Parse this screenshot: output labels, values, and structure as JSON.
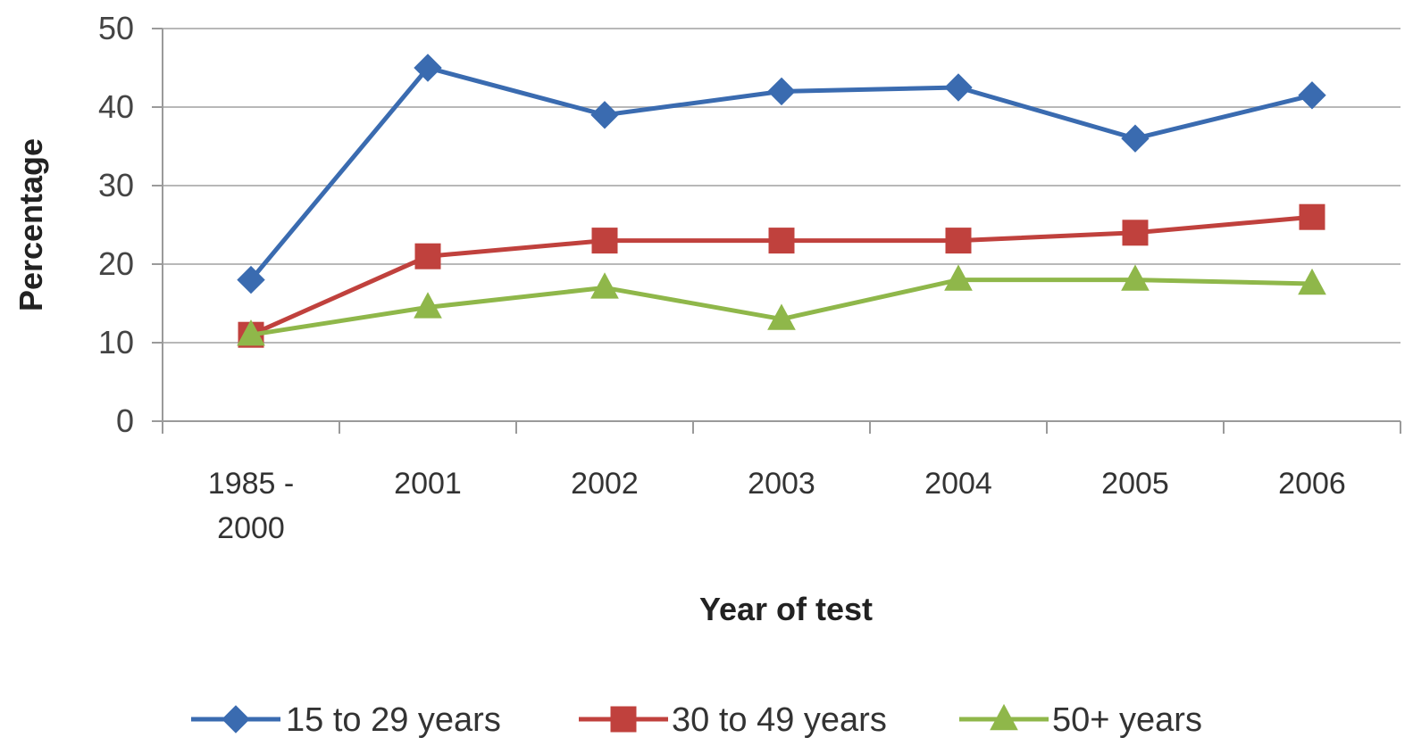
{
  "chart_data": {
    "type": "line",
    "categories": [
      "1985 - 2000",
      "2001",
      "2002",
      "2003",
      "2004",
      "2005",
      "2006"
    ],
    "category_lines": [
      [
        "1985 -",
        "2000"
      ],
      [
        "2001"
      ],
      [
        "2002"
      ],
      [
        "2003"
      ],
      [
        "2004"
      ],
      [
        "2005"
      ],
      [
        "2006"
      ]
    ],
    "xlabel": "Year of test",
    "ylabel": "Percentage",
    "ylim": [
      0,
      50
    ],
    "yticks": [
      "0",
      "10",
      "20",
      "30",
      "40",
      "50"
    ],
    "grid": true,
    "legend_position": "bottom",
    "series": [
      {
        "name": "15 to 29 years",
        "color": "#3a6bb0",
        "marker": "diamond",
        "values": [
          18,
          45,
          39,
          42,
          42.5,
          36,
          41.5
        ]
      },
      {
        "name": "30 to 49 years",
        "color": "#c0413d",
        "marker": "square",
        "values": [
          11,
          21,
          23,
          23,
          23,
          24,
          26
        ]
      },
      {
        "name": "50+ years",
        "color": "#8fb74a",
        "marker": "triangle",
        "values": [
          11,
          14.5,
          17,
          13,
          18,
          18,
          17.5
        ]
      }
    ]
  }
}
